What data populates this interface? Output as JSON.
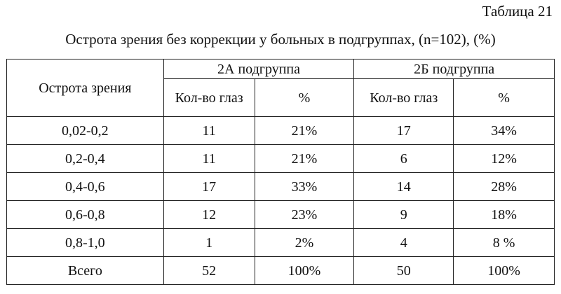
{
  "table_number": "Таблица 21",
  "caption": "Острота зрения без коррекции у больных в подгруппах, (n=102), (%)",
  "table": {
    "row_header": "Острота зрения",
    "groups": [
      "2А подгруппа",
      "2Б подгруппа"
    ],
    "subcolumns": [
      "Кол-во глаз",
      "%",
      "Кол-во глаз",
      "%"
    ],
    "rows": [
      [
        "0,02-0,2",
        "11",
        "21%",
        "17",
        "34%"
      ],
      [
        "0,2-0,4",
        "11",
        "21%",
        "6",
        "12%"
      ],
      [
        "0,4-0,6",
        "17",
        "33%",
        "14",
        "28%"
      ],
      [
        "0,6-0,8",
        "12",
        "23%",
        "9",
        "18%"
      ],
      [
        "0,8-1,0",
        "1",
        "2%",
        "4",
        "8 %"
      ],
      [
        "Всего",
        "52",
        "100%",
        "50",
        "100%"
      ]
    ]
  }
}
